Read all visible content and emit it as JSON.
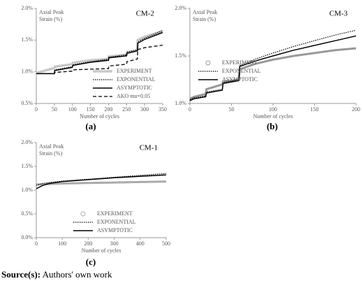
{
  "chart_data": [
    {
      "type": "line",
      "title": "CM-2",
      "ylabel": [
        "Axial Peak",
        "Strain (%)"
      ],
      "xlabel": "Number of cycles",
      "panel_label": "(a)",
      "x": [
        0,
        50,
        51,
        100,
        101,
        150,
        200,
        201,
        250,
        251,
        280,
        281,
        300,
        350
      ],
      "xlim": [
        0,
        350
      ],
      "xticks": [
        0,
        50,
        100,
        150,
        200,
        250,
        300,
        350
      ],
      "ylim": [
        0.5,
        2.0
      ],
      "yticks": [
        {
          "value": 0.5,
          "label": "0.5%"
        },
        {
          "value": 1.0,
          "label": "1.0%"
        },
        {
          "value": 1.5,
          "label": "1.5%"
        },
        {
          "value": 2.0,
          "label": "2.0%"
        }
      ],
      "legend": "lower right",
      "series": [
        {
          "name": "EXPERIMENT",
          "color": "#c8c8c8",
          "style": "thick",
          "values": [
            0.98,
            1.06,
            1.08,
            1.12,
            1.14,
            1.18,
            1.2,
            1.24,
            1.27,
            1.31,
            1.33,
            1.5,
            1.55,
            1.64
          ]
        },
        {
          "name": "EXPONENTIAL",
          "color": "#000000",
          "style": "dotted",
          "values": [
            0.97,
            0.97,
            1.03,
            1.08,
            1.11,
            1.16,
            1.2,
            1.23,
            1.27,
            1.31,
            1.35,
            1.47,
            1.53,
            1.65
          ]
        },
        {
          "name": "ASYMPTOTIC",
          "color": "#000000",
          "style": "solid",
          "values": [
            0.97,
            0.97,
            1.02,
            1.07,
            1.1,
            1.15,
            1.18,
            1.22,
            1.25,
            1.29,
            1.33,
            1.45,
            1.51,
            1.62
          ]
        },
        {
          "name": "AKO mu=0.05",
          "color": "#000000",
          "style": "dashed",
          "values": [
            0.97,
            0.97,
            0.99,
            1.01,
            1.03,
            1.04,
            1.05,
            1.09,
            1.12,
            1.16,
            1.2,
            1.35,
            1.38,
            1.42
          ]
        }
      ]
    },
    {
      "type": "line",
      "title": "CM-3",
      "ylabel": [
        "Axial Peak",
        "Strain (%)"
      ],
      "xlabel": "Number of cycles",
      "panel_label": "(b)",
      "x": [
        0,
        5,
        19,
        20,
        39,
        40,
        59,
        60,
        80,
        100,
        125,
        150,
        175,
        200
      ],
      "xlim": [
        0,
        200
      ],
      "xticks": [
        0,
        50,
        100,
        150,
        200
      ],
      "ylim": [
        1.0,
        2.0
      ],
      "yticks": [
        {
          "value": 1.0,
          "label": "1.0%"
        },
        {
          "value": 1.5,
          "label": "1.5%"
        },
        {
          "value": 2.0,
          "label": "2.0%"
        }
      ],
      "legend": "lower left",
      "series": [
        {
          "name": "EXPERIMENT",
          "color": "#999999",
          "style": "markers",
          "values": [
            1.05,
            1.07,
            1.1,
            1.15,
            1.2,
            1.23,
            1.25,
            1.36,
            1.42,
            1.46,
            1.5,
            1.53,
            1.56,
            1.58
          ]
        },
        {
          "name": "EXPONENTIAL",
          "color": "#000000",
          "style": "dotted",
          "values": [
            1.04,
            1.06,
            1.08,
            1.12,
            1.15,
            1.22,
            1.25,
            1.4,
            1.47,
            1.53,
            1.6,
            1.66,
            1.72,
            1.77
          ]
        },
        {
          "name": "ASYMPTOTIC",
          "color": "#000000",
          "style": "solid",
          "values": [
            1.03,
            1.05,
            1.07,
            1.11,
            1.14,
            1.21,
            1.24,
            1.39,
            1.45,
            1.5,
            1.56,
            1.61,
            1.66,
            1.71
          ]
        }
      ]
    },
    {
      "type": "line",
      "title": "CM-1",
      "ylabel": [
        "Axial Peak",
        "Strain (%)"
      ],
      "xlabel": "Number of cycles",
      "panel_label": "(c)",
      "x": [
        0,
        25,
        50,
        100,
        200,
        300,
        400,
        500
      ],
      "xlim": [
        0,
        500
      ],
      "xticks": [
        0,
        100,
        200,
        300,
        400,
        500
      ],
      "ylim": [
        0.0,
        2.0
      ],
      "yticks": [
        {
          "value": 0.0,
          "label": "0.0%"
        },
        {
          "value": 0.5,
          "label": "0.5%"
        },
        {
          "value": 1.0,
          "label": "1.0%"
        },
        {
          "value": 1.5,
          "label": "1.5%"
        },
        {
          "value": 2.0,
          "label": "2.0%"
        }
      ],
      "legend": "lower center",
      "series": [
        {
          "name": "EXPERIMENT",
          "color": "#aaaaaa",
          "style": "markers",
          "values": [
            1.12,
            1.12,
            1.13,
            1.14,
            1.15,
            1.16,
            1.17,
            1.18
          ]
        },
        {
          "name": "EXPONENTIAL",
          "color": "#000000",
          "style": "dotted",
          "values": [
            1.1,
            1.14,
            1.16,
            1.19,
            1.23,
            1.27,
            1.31,
            1.35
          ]
        },
        {
          "name": "ASYMPTOTIC",
          "color": "#000000",
          "style": "solid",
          "values": [
            1.03,
            1.1,
            1.14,
            1.18,
            1.22,
            1.26,
            1.29,
            1.32
          ]
        }
      ]
    }
  ],
  "source": {
    "label": "Source(s):",
    "text": "Authors' own work"
  }
}
